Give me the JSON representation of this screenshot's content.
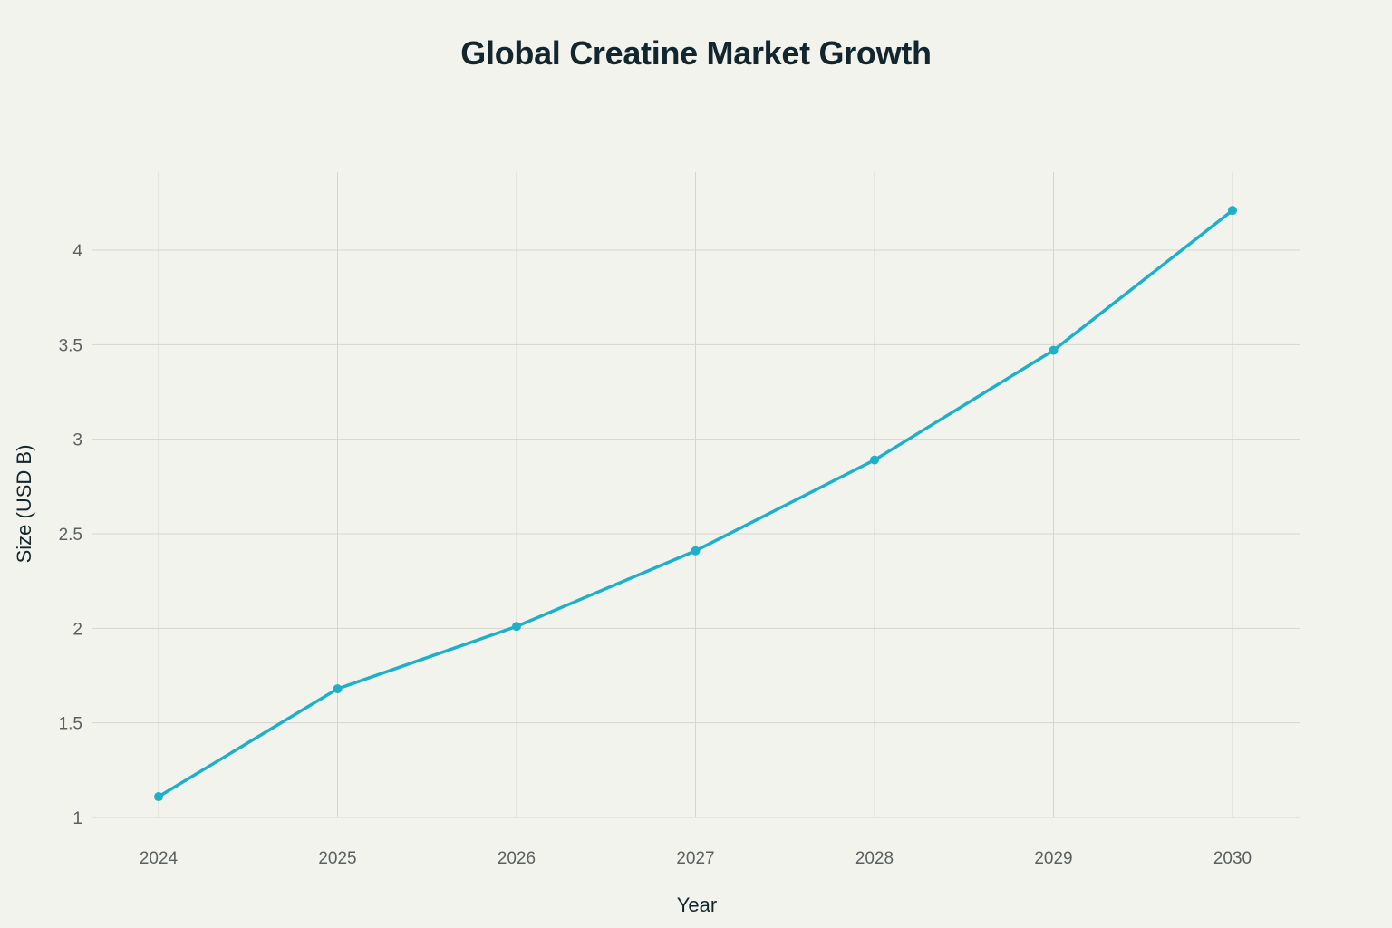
{
  "chart_data": {
    "type": "line",
    "title": "Global Creatine Market Growth",
    "xlabel": "Year",
    "ylabel": "Size (USD B)",
    "x": [
      "2024",
      "2025",
      "2026",
      "2027",
      "2028",
      "2029",
      "2030"
    ],
    "series": [
      {
        "values": [
          1.11,
          1.68,
          2.01,
          2.41,
          2.89,
          3.47,
          4.21
        ],
        "color": "#1fb0c9"
      }
    ],
    "yticks": [
      "1",
      "1.5",
      "2",
      "2.5",
      "3",
      "3.5",
      "4"
    ],
    "ylim": [
      0.92,
      4.42
    ],
    "grid": true,
    "markers": true,
    "legend": "none"
  },
  "colors": {
    "background": "#f3f3ee",
    "grid": "#d4d5d2",
    "line": "#1fb0c9",
    "title": "#13262e",
    "tick": "#5c5f61"
  }
}
